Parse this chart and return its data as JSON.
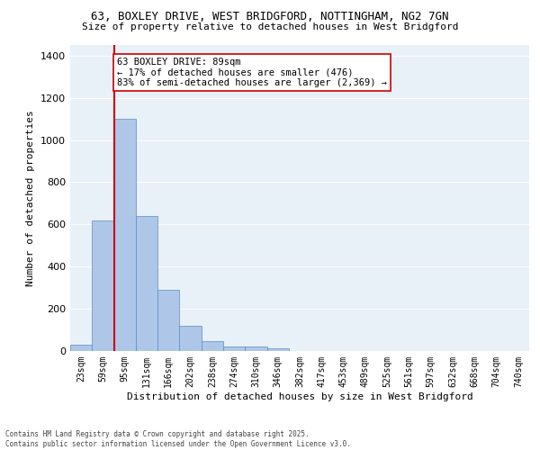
{
  "title_line1": "63, BOXLEY DRIVE, WEST BRIDGFORD, NOTTINGHAM, NG2 7GN",
  "title_line2": "Size of property relative to detached houses in West Bridgford",
  "xlabel": "Distribution of detached houses by size in West Bridgford",
  "ylabel": "Number of detached properties",
  "categories": [
    "23sqm",
    "59sqm",
    "95sqm",
    "131sqm",
    "166sqm",
    "202sqm",
    "238sqm",
    "274sqm",
    "310sqm",
    "346sqm",
    "382sqm",
    "417sqm",
    "453sqm",
    "489sqm",
    "525sqm",
    "561sqm",
    "597sqm",
    "632sqm",
    "668sqm",
    "704sqm",
    "740sqm"
  ],
  "values": [
    30,
    620,
    1100,
    640,
    290,
    120,
    48,
    20,
    20,
    12,
    0,
    0,
    0,
    0,
    0,
    0,
    0,
    0,
    0,
    0,
    0
  ],
  "bar_color": "#aec6e8",
  "bar_edge_color": "#5a8fc0",
  "vline_color": "#cc0000",
  "annotation_text": "63 BOXLEY DRIVE: 89sqm\n← 17% of detached houses are smaller (476)\n83% of semi-detached houses are larger (2,369) →",
  "annotation_box_color": "white",
  "annotation_box_edge_color": "#cc0000",
  "ylim": [
    0,
    1450
  ],
  "yticks": [
    0,
    200,
    400,
    600,
    800,
    1000,
    1200,
    1400
  ],
  "bg_color": "#e8f0f8",
  "grid_color": "white",
  "footer_line1": "Contains HM Land Registry data © Crown copyright and database right 2025.",
  "footer_line2": "Contains public sector information licensed under the Open Government Licence v3.0."
}
